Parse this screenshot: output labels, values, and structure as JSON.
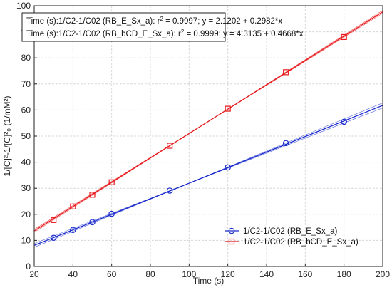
{
  "chart_data": {
    "type": "scatter",
    "xlabel": "Time (s)",
    "ylabel": "1/[C]²-1/[C]²₀ (1/mM²)",
    "xlim": [
      20,
      200
    ],
    "ylim": [
      0,
      100
    ],
    "x_ticks": [
      20,
      40,
      60,
      80,
      100,
      120,
      140,
      160,
      180,
      200
    ],
    "y_ticks": [
      0,
      10,
      20,
      30,
      40,
      50,
      60,
      70,
      80,
      90,
      100
    ],
    "grid": true,
    "legend_position": "bottom-right",
    "annotations": [
      {
        "prefix": "Time (s):1/C2-1/C02 (RB_E_Sx_a):  r",
        "sup": "2",
        "suffix": " = 0.9997;  y = 2.1202 + 0.2982*x"
      },
      {
        "prefix": "Time (s):1/C2-1/C02 (RB_bCD_E_Sx_a):  r",
        "sup": "2",
        "suffix": " = 0.9999;  y = 4.3135 + 0.4668*x"
      }
    ],
    "series": [
      {
        "name": "1/C2-1/C02 (RB_E_Sx_a)",
        "color": "#1a2bcc",
        "marker": "circle",
        "x": [
          30,
          40,
          50,
          60,
          90,
          120,
          150,
          180
        ],
        "y": [
          11.0,
          14.0,
          17.0,
          20.2,
          29.1,
          38.0,
          47.3,
          55.5
        ],
        "fit": {
          "intercept": 2.1202,
          "slope": 0.2982
        }
      },
      {
        "name": "1/C2-1/C02 (RB_bCD_E_Sx_a)",
        "color": "#e8191c",
        "marker": "square",
        "x": [
          30,
          40,
          50,
          60,
          90,
          120,
          150,
          180
        ],
        "y": [
          17.8,
          23.0,
          27.5,
          32.3,
          46.3,
          60.5,
          74.5,
          88.0
        ],
        "fit": {
          "intercept": 4.3135,
          "slope": 0.4668
        }
      }
    ]
  }
}
